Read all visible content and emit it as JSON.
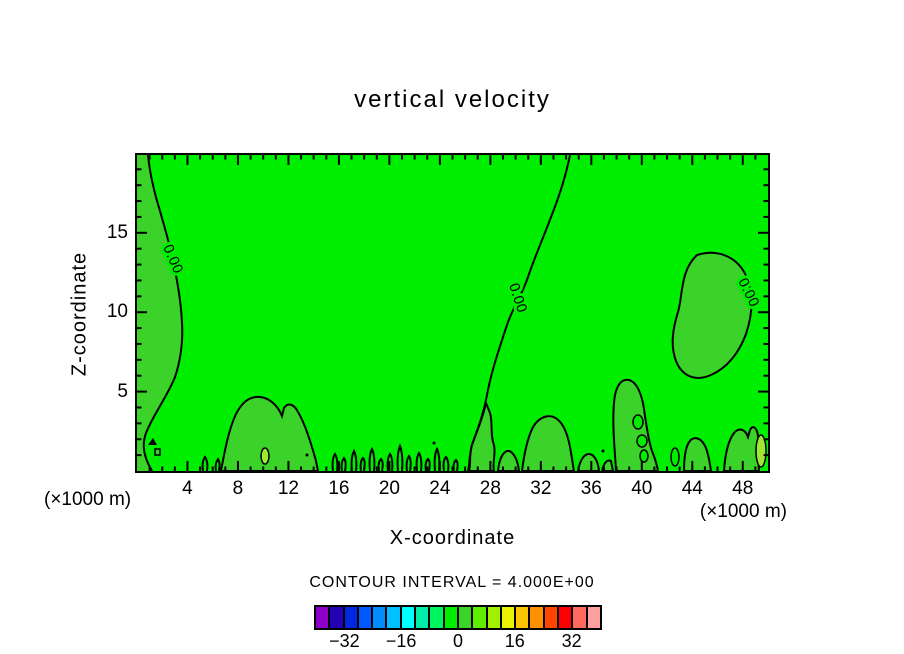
{
  "title": "vertical velocity",
  "axes": {
    "x": {
      "label": "X-coordinate",
      "unit_label": "(×1000 m)",
      "range": [
        0,
        50
      ],
      "major_ticks": [
        4,
        8,
        12,
        16,
        20,
        24,
        28,
        32,
        36,
        40,
        44,
        48
      ],
      "minor_step": 1
    },
    "y": {
      "label": "Z-coordinate",
      "unit_label": "(×1000 m)",
      "range": [
        0,
        19.9
      ],
      "major_ticks": [
        5,
        10,
        15
      ],
      "minor_step": 1
    }
  },
  "contour": {
    "label": "0.00",
    "interval_text": "CONTOUR INTERVAL = 4.000E+00"
  },
  "palette": {
    "primary_green": "#00EE00",
    "secondary_green": "#3BD32A",
    "accent_green": "#A0E836",
    "line_color": "#000000",
    "background": "#FFFFFF"
  },
  "colorbar": {
    "colors": [
      "#8E00C8",
      "#2400B4",
      "#0028E0",
      "#0058FF",
      "#008CFF",
      "#00C0FF",
      "#00FFFF",
      "#00EFA8",
      "#00F45C",
      "#00EE00",
      "#3BD32A",
      "#60EE00",
      "#A0F000",
      "#E8F400",
      "#FFC400",
      "#FF9000",
      "#FF4400",
      "#FF0000",
      "#FF6A5E",
      "#FFA0A0"
    ],
    "tick_labels": [
      "−32",
      "−16",
      "0",
      "16",
      "32"
    ],
    "tick_positions": [
      0.1,
      0.3,
      0.5,
      0.7,
      0.9
    ]
  },
  "chart_data": {
    "type": "heatmap",
    "subtype": "filled-contour-plot",
    "title": "vertical velocity",
    "xlabel": "X-coordinate",
    "ylabel": "Z-coordinate",
    "x_unit": "(×1000 m)",
    "y_unit": "(×1000 m)",
    "xlim": [
      0,
      50
    ],
    "ylim": [
      0,
      20
    ],
    "x_ticks": [
      4,
      8,
      12,
      16,
      20,
      24,
      28,
      32,
      36,
      40,
      44,
      48
    ],
    "y_ticks": [
      5,
      10,
      15
    ],
    "contour_interval": 4.0,
    "labeled_contour_level": 0.0,
    "colorbar_boundaries": [
      -40,
      -36,
      -32,
      -28,
      -24,
      -20,
      -16,
      -12,
      -8,
      -4,
      0,
      4,
      8,
      12,
      16,
      20,
      24,
      28,
      32,
      36,
      40
    ],
    "colorbar_tick_labels": [
      "−32",
      "−16",
      "0",
      "16",
      "32"
    ],
    "field_summary": "Vertical velocity is within one contour interval of zero nearly everywhere. The 0.00 contour runs down the left edge (x≈0–4), descends through mid-domain from x≈34 at the top to x≈26 at the surface, and encloses a closed pocket near x≈42–49, z≈6–13. Many small-amplitude pockets and narrow updraft/downdraft filaments (±4) line the lower boundary z≈0–5, with a few small cells reaching the +4 to +8 band near x≈10 and x≈49."
  }
}
